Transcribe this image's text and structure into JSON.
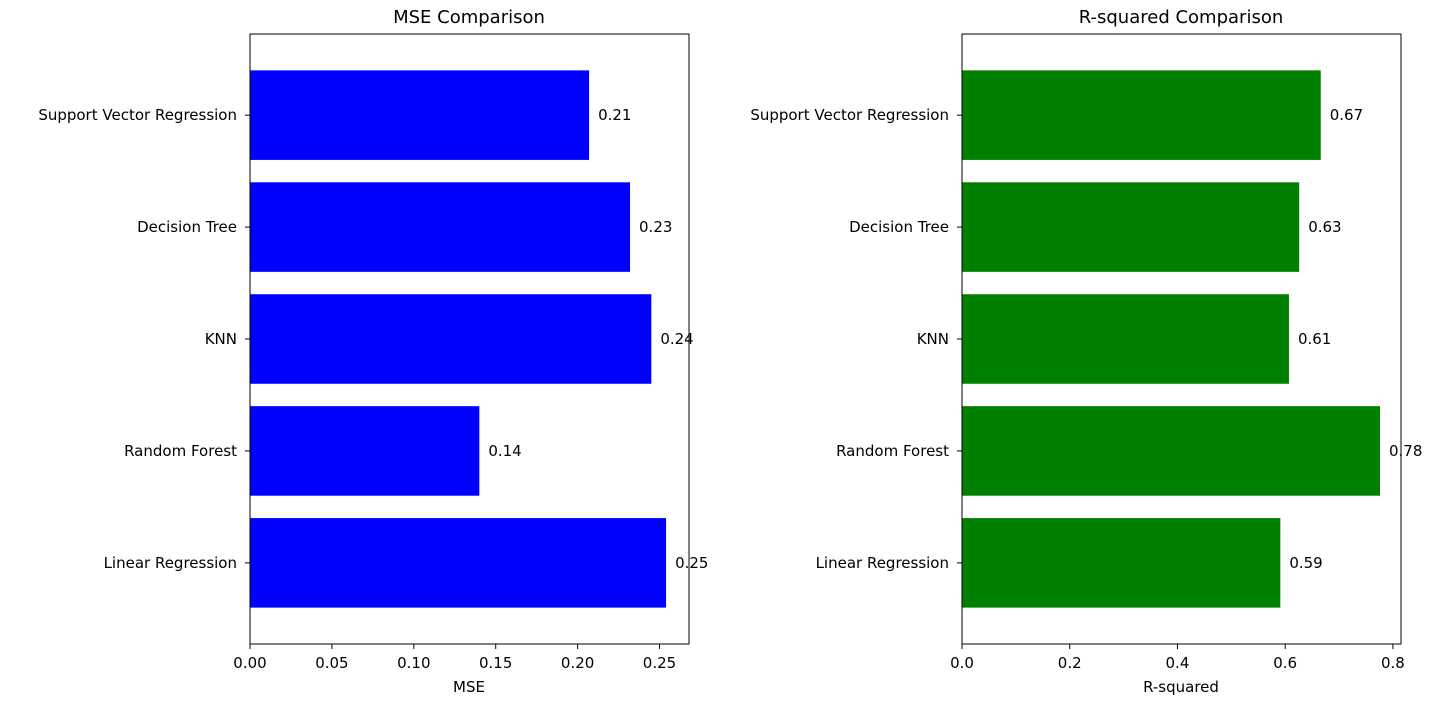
{
  "chart_data": [
    {
      "type": "bar",
      "orientation": "horizontal",
      "title": "MSE Comparison",
      "xlabel": "MSE",
      "ylabel": "",
      "categories": [
        "Linear Regression",
        "Random Forest",
        "KNN",
        "Decision Tree",
        "Support Vector Regression"
      ],
      "values": [
        0.254,
        0.14,
        0.245,
        0.232,
        0.207
      ],
      "value_labels": [
        "0.25",
        "0.14",
        "0.24",
        "0.23",
        "0.21"
      ],
      "xlim": [
        0,
        0.268
      ],
      "xticks": [
        0.0,
        0.05,
        0.1,
        0.15,
        0.2,
        0.25
      ],
      "xtick_labels": [
        "0.00",
        "0.05",
        "0.10",
        "0.15",
        "0.20",
        "0.25"
      ],
      "color": "#0000ff",
      "grid": false
    },
    {
      "type": "bar",
      "orientation": "horizontal",
      "title": "R-squared Comparison",
      "xlabel": "R-squared",
      "ylabel": "",
      "categories": [
        "Linear Regression",
        "Random Forest",
        "KNN",
        "Decision Tree",
        "Support Vector Regression"
      ],
      "values": [
        0.591,
        0.776,
        0.607,
        0.626,
        0.666
      ],
      "value_labels": [
        "0.59",
        "0.78",
        "0.61",
        "0.63",
        "0.67"
      ],
      "xlim": [
        0,
        0.815
      ],
      "xticks": [
        0.0,
        0.2,
        0.4,
        0.6,
        0.8
      ],
      "xtick_labels": [
        "0.0",
        "0.2",
        "0.4",
        "0.6",
        "0.8"
      ],
      "color": "#008000",
      "grid": false
    }
  ]
}
